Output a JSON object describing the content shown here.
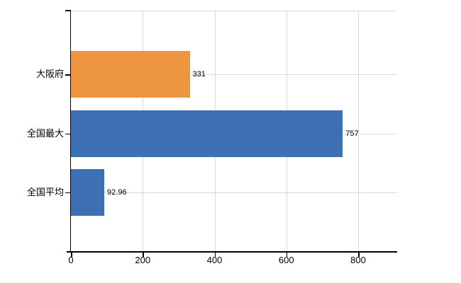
{
  "chart_data": {
    "type": "bar",
    "orientation": "horizontal",
    "title": "",
    "xlabel": "",
    "ylabel": "",
    "categories": [
      "大阪府",
      "全国最大",
      "全国平均"
    ],
    "values": [
      331,
      757,
      92.96
    ],
    "value_labels": [
      "331",
      "757",
      "92.96"
    ],
    "bar_colors": [
      "#ED9540",
      "#3D6FB2",
      "#3D6FB2"
    ],
    "x_axis": {
      "ticks": [
        0,
        200,
        400,
        600,
        800
      ],
      "tick_labels": [
        "0",
        "200",
        "400",
        "600",
        "800"
      ],
      "range": [
        0,
        910
      ]
    },
    "grid": true,
    "legend": "none",
    "colors": {
      "axis": "#000000",
      "grid": "#d9d9d9",
      "text": "#000000"
    }
  }
}
